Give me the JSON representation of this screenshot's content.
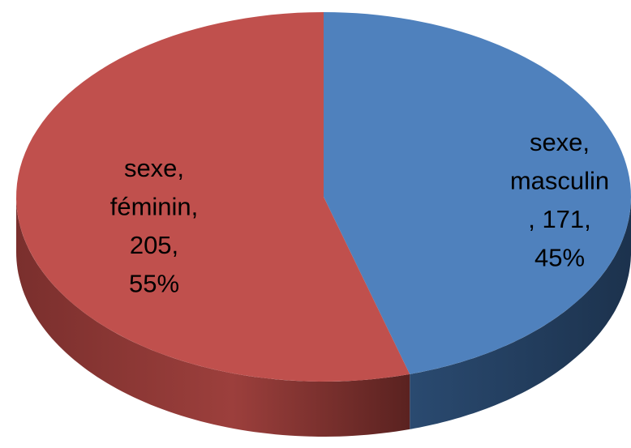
{
  "chart_data": {
    "type": "pie3d",
    "values": [
      171,
      205
    ],
    "value_labels": [
      [
        "sexe,",
        "masculin",
        ", 171,",
        "45%"
      ],
      [
        "sexe,",
        "féminin,",
        "205,",
        "55%"
      ]
    ],
    "colors": [
      "#4f81bd",
      "#c0504d"
    ]
  }
}
